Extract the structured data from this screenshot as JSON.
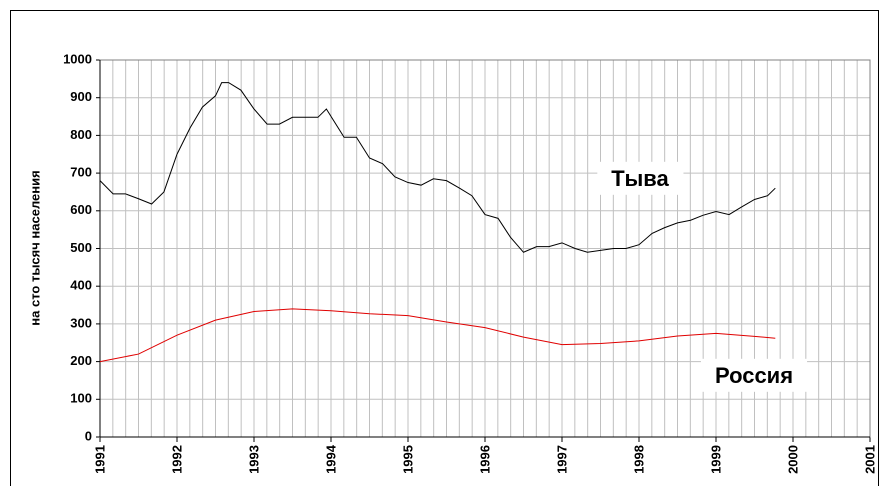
{
  "chart_data": {
    "type": "line",
    "y_label": "на сто тысяч населения",
    "annotations": [
      "Тыва",
      "Россия"
    ],
    "xlim": [
      1991,
      2001
    ],
    "xticks": [
      1991,
      1992,
      1993,
      1994,
      1995,
      1996,
      1997,
      1998,
      1999,
      2000,
      2001
    ],
    "minor_grid_per_xtick": 6,
    "ylim": [
      0,
      1000
    ],
    "yticks": [
      0,
      100,
      200,
      300,
      400,
      500,
      600,
      700,
      800,
      900,
      1000
    ],
    "grid": true,
    "series": [
      {
        "name": "Тыва",
        "color": "#000000",
        "x": [
          1991,
          1991.17,
          1991.33,
          1991.5,
          1991.67,
          1991.83,
          1992,
          1992.17,
          1992.33,
          1992.5,
          1992.58,
          1992.67,
          1992.83,
          1993,
          1993.17,
          1993.33,
          1993.5,
          1993.67,
          1993.83,
          1993.94,
          1994.17,
          1994.33,
          1994.5,
          1994.67,
          1994.83,
          1995,
          1995.17,
          1995.33,
          1995.5,
          1995.67,
          1995.83,
          1996,
          1996.17,
          1996.33,
          1996.5,
          1996.67,
          1996.83,
          1997,
          1997.17,
          1997.33,
          1997.5,
          1997.67,
          1997.83,
          1998,
          1998.17,
          1998.33,
          1998.5,
          1998.67,
          1998.83,
          1999,
          1999.17,
          1999.33,
          1999.5,
          1999.67,
          1999.77
        ],
        "values": [
          680,
          645,
          645,
          632,
          618,
          650,
          750,
          820,
          875,
          905,
          940,
          940,
          920,
          870,
          830,
          830,
          848,
          848,
          848,
          870,
          795,
          795,
          740,
          725,
          690,
          675,
          668,
          685,
          680,
          660,
          640,
          590,
          580,
          530,
          490,
          505,
          505,
          515,
          500,
          490,
          495,
          500,
          500,
          510,
          540,
          555,
          568,
          575,
          588,
          598,
          590,
          610,
          630,
          640,
          660
        ]
      },
      {
        "name": "Россия",
        "color": "#e00000",
        "x": [
          1991,
          1991.5,
          1992,
          1992.5,
          1993,
          1993.5,
          1994,
          1994.5,
          1995,
          1995.5,
          1996,
          1996.5,
          1997,
          1997.5,
          1998,
          1998.5,
          1999,
          1999.5,
          1999.77
        ],
        "values": [
          200,
          220,
          270,
          310,
          333,
          340,
          335,
          327,
          322,
          305,
          290,
          265,
          245,
          248,
          255,
          268,
          275,
          267,
          262
        ]
      }
    ]
  }
}
